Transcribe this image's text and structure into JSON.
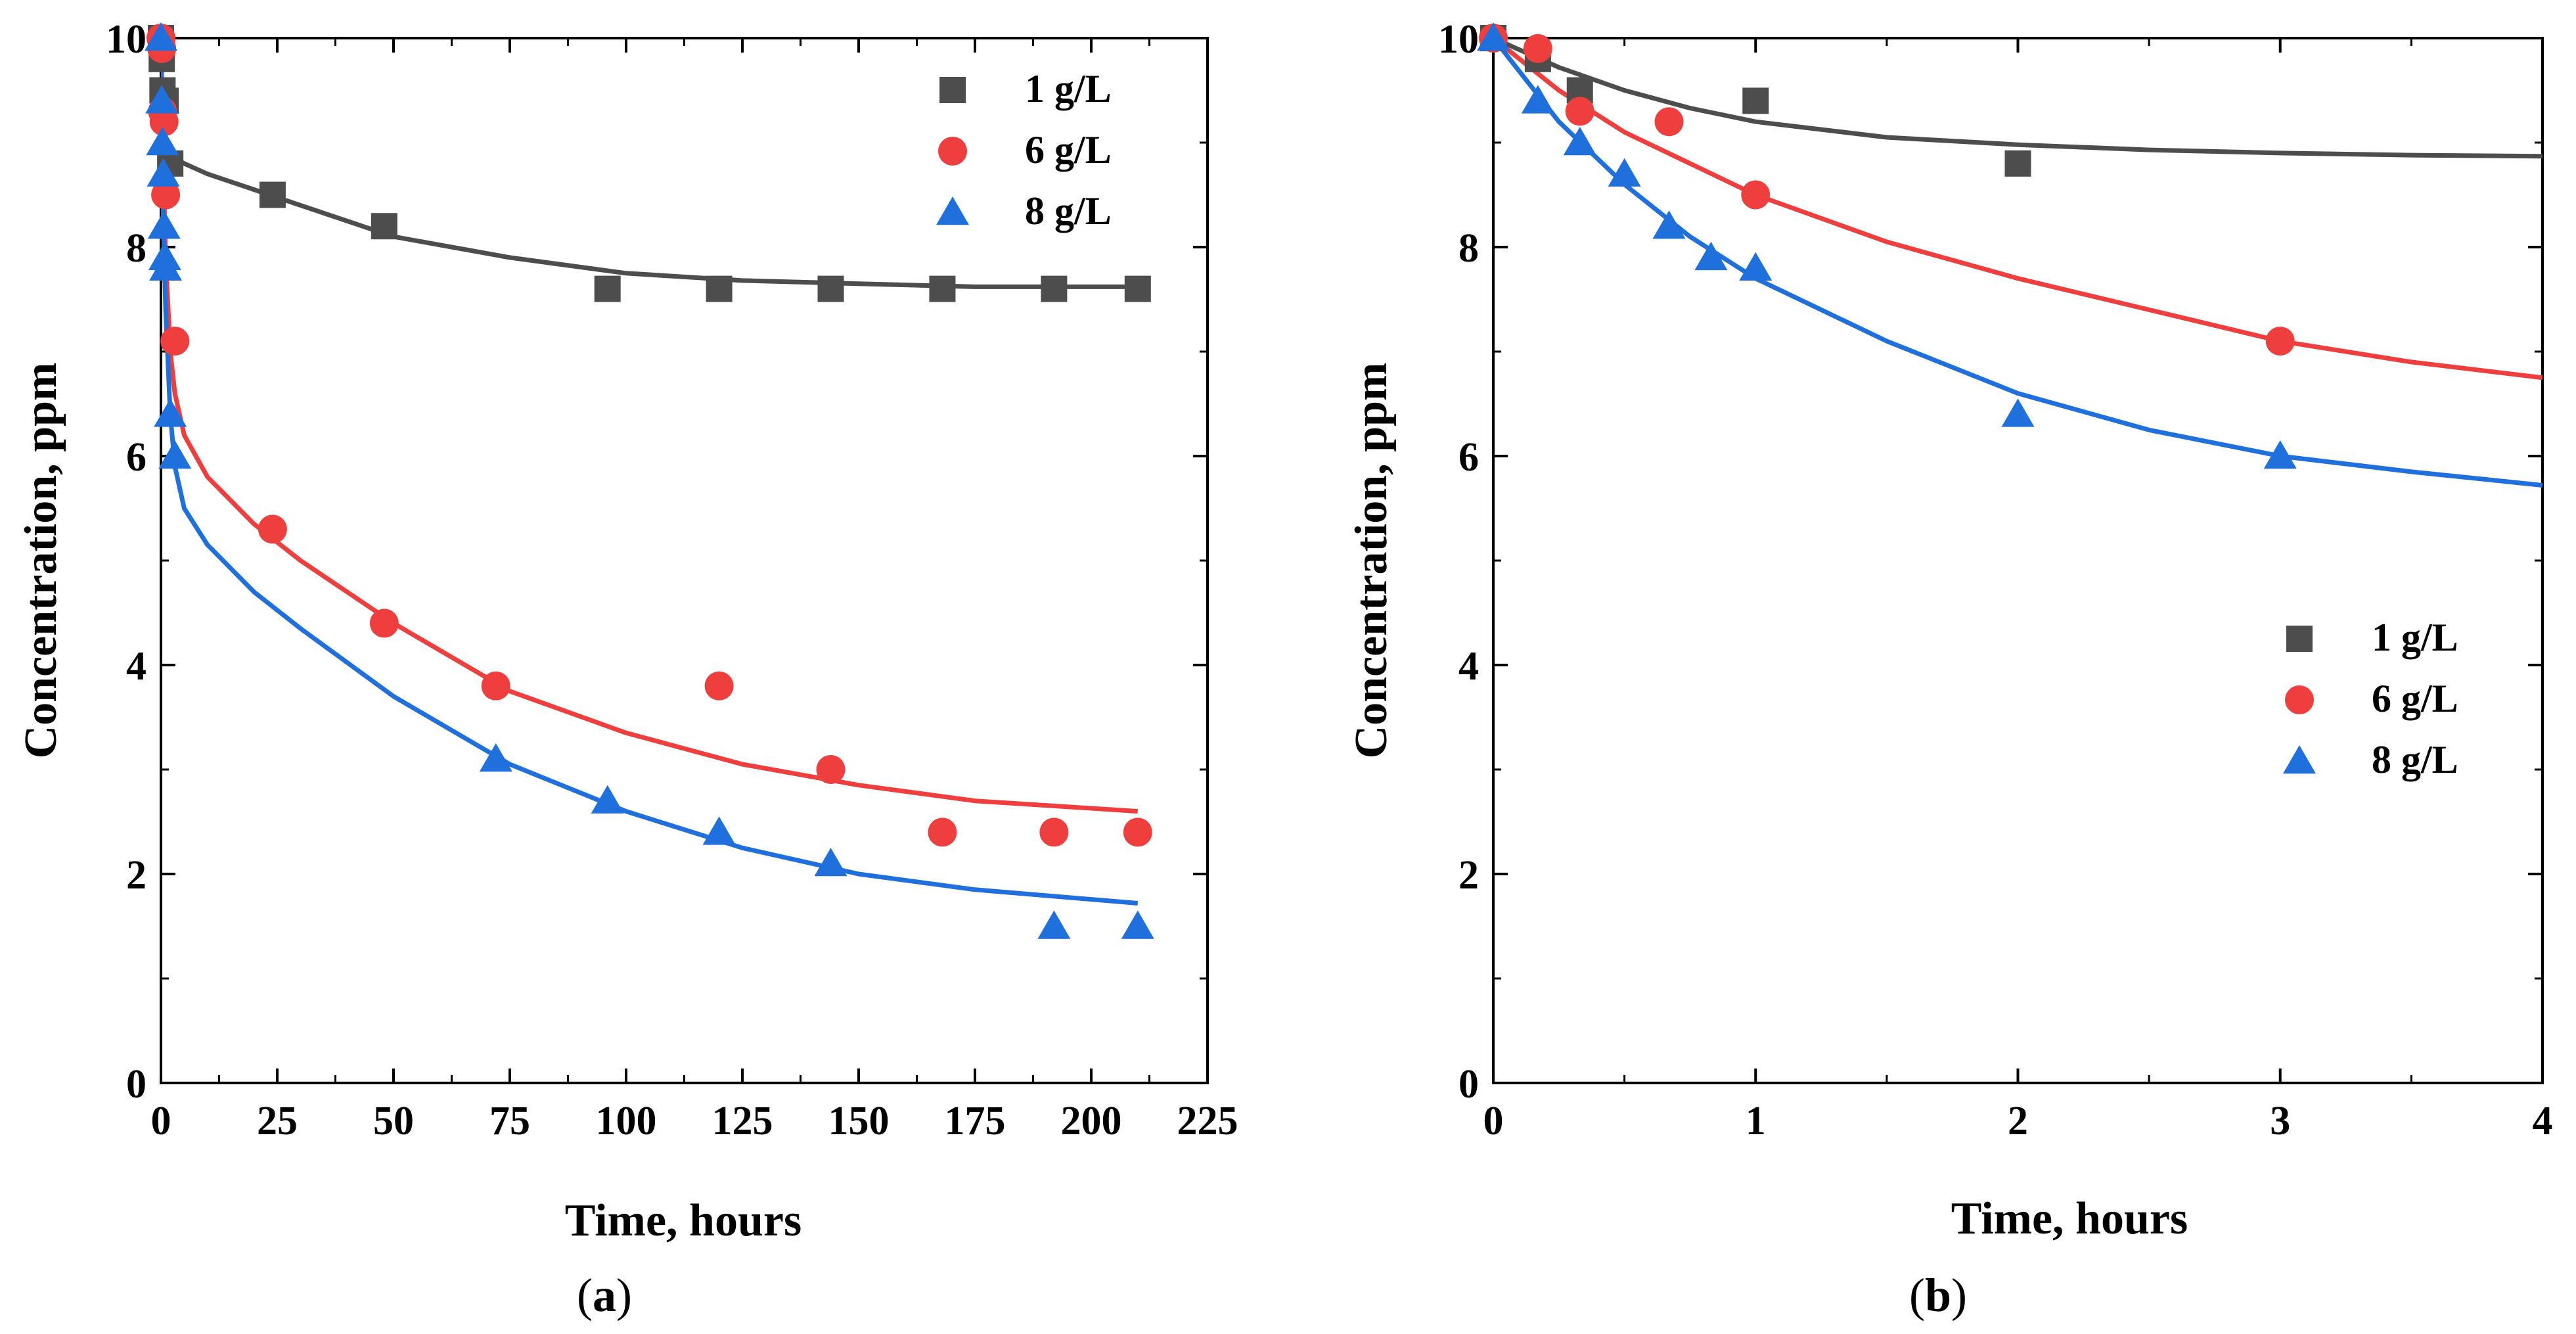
{
  "colors": {
    "1 g/L": "#4d4d4d",
    "6 g/L": "#ef3e3e",
    "8 g/L": "#1f6fdc"
  },
  "chart_data": [
    {
      "panel": "a",
      "type": "scatter",
      "xlabel": "Time, hours",
      "ylabel": "Concentration, ppm",
      "xlim": [
        0,
        225
      ],
      "ylim": [
        0,
        10
      ],
      "xticks": [
        "0",
        "25",
        "50",
        "75",
        "100",
        "125",
        "150",
        "175",
        "200",
        "225"
      ],
      "yticks": [
        "0",
        "2",
        "4",
        "6",
        "8",
        "10"
      ],
      "legend": "top-right",
      "series": [
        {
          "name": "1 g/L",
          "marker": "square",
          "x": [
            0,
            0.17,
            0.33,
            0.5,
            1,
            2,
            24,
            48,
            96,
            120,
            144,
            168,
            192,
            210
          ],
          "y": [
            10,
            9.8,
            9.5,
            9.4,
            9.4,
            8.8,
            8.5,
            8.2,
            7.6,
            7.6,
            7.6,
            7.6,
            7.6,
            7.6
          ]
        },
        {
          "name": "6 g/L",
          "marker": "circle",
          "x": [
            0,
            0.17,
            0.33,
            0.67,
            1,
            3,
            24,
            48,
            72,
            120,
            144,
            168,
            192,
            210
          ],
          "y": [
            10,
            9.9,
            9.3,
            9.2,
            8.5,
            7.1,
            5.3,
            4.4,
            3.8,
            3.8,
            3.0,
            2.4,
            2.4,
            2.4
          ]
        },
        {
          "name": "8 g/L",
          "marker": "triangle",
          "x": [
            0,
            0.17,
            0.33,
            0.5,
            0.67,
            0.83,
            1,
            2,
            3,
            72,
            96,
            120,
            144,
            192,
            210
          ],
          "y": [
            10,
            9.4,
            9.0,
            8.7,
            8.2,
            7.9,
            7.8,
            6.4,
            6.0,
            3.1,
            2.7,
            2.4,
            2.1,
            1.5,
            1.5
          ]
        }
      ],
      "fits": [
        {
          "name": "1 g/L",
          "x": [
            0,
            0.3,
            1,
            2,
            3,
            5,
            10,
            20,
            30,
            50,
            75,
            100,
            125,
            150,
            175,
            210
          ],
          "y": [
            10,
            9.3,
            9.0,
            8.9,
            8.85,
            8.8,
            8.7,
            8.55,
            8.4,
            8.1,
            7.9,
            7.75,
            7.68,
            7.65,
            7.62,
            7.62
          ]
        },
        {
          "name": "6 g/L",
          "x": [
            0,
            0.5,
            1,
            2,
            3,
            5,
            10,
            20,
            30,
            50,
            75,
            100,
            125,
            150,
            175,
            210
          ],
          "y": [
            10,
            8.8,
            7.9,
            7.0,
            6.6,
            6.2,
            5.8,
            5.35,
            5.0,
            4.4,
            3.75,
            3.35,
            3.05,
            2.85,
            2.7,
            2.6
          ]
        },
        {
          "name": "8 g/L",
          "x": [
            0,
            0.5,
            1,
            2,
            3,
            5,
            10,
            20,
            30,
            50,
            75,
            100,
            125,
            150,
            175,
            210
          ],
          "y": [
            10,
            8.3,
            7.4,
            6.4,
            5.9,
            5.5,
            5.15,
            4.7,
            4.35,
            3.7,
            3.05,
            2.6,
            2.25,
            2.0,
            1.85,
            1.72
          ]
        }
      ]
    },
    {
      "panel": "b",
      "type": "scatter",
      "xlabel": "Time, hours",
      "ylabel": "Concentration, ppm",
      "xlim": [
        0,
        4
      ],
      "ylim": [
        0,
        10
      ],
      "xticks": [
        "0",
        "1",
        "2",
        "3",
        "4"
      ],
      "yticks": [
        "0",
        "2",
        "4",
        "6",
        "8",
        "10"
      ],
      "legend": "center-right",
      "series": [
        {
          "name": "1 g/L",
          "marker": "square",
          "x": [
            0,
            0.17,
            0.33,
            1,
            2
          ],
          "y": [
            10,
            9.8,
            9.5,
            9.4,
            8.8
          ]
        },
        {
          "name": "6 g/L",
          "marker": "circle",
          "x": [
            0,
            0.17,
            0.33,
            0.67,
            1,
            3
          ],
          "y": [
            10,
            9.9,
            9.3,
            9.2,
            8.5,
            7.1
          ]
        },
        {
          "name": "8 g/L",
          "marker": "triangle",
          "x": [
            0,
            0.17,
            0.33,
            0.5,
            0.67,
            0.83,
            1,
            2,
            3
          ],
          "y": [
            10,
            9.4,
            9.0,
            8.7,
            8.2,
            7.9,
            7.8,
            6.4,
            6.0
          ]
        }
      ],
      "fits": [
        {
          "name": "1 g/L",
          "x": [
            0,
            0.25,
            0.5,
            0.75,
            1,
            1.5,
            2,
            2.5,
            3,
            3.5,
            4
          ],
          "y": [
            10,
            9.72,
            9.5,
            9.33,
            9.2,
            9.05,
            8.98,
            8.93,
            8.9,
            8.88,
            8.87
          ]
        },
        {
          "name": "6 g/L",
          "x": [
            0,
            0.25,
            0.5,
            0.75,
            1,
            1.5,
            2,
            2.5,
            3,
            3.5,
            4
          ],
          "y": [
            10,
            9.5,
            9.1,
            8.8,
            8.5,
            8.05,
            7.7,
            7.4,
            7.1,
            6.9,
            6.75
          ]
        },
        {
          "name": "8 g/L",
          "x": [
            0,
            0.25,
            0.5,
            0.75,
            1,
            1.5,
            2,
            2.5,
            3,
            3.5,
            4
          ],
          "y": [
            10,
            9.2,
            8.6,
            8.1,
            7.7,
            7.1,
            6.6,
            6.25,
            6.0,
            5.85,
            5.72
          ]
        }
      ]
    }
  ],
  "panel_labels": [
    "a",
    "b"
  ]
}
